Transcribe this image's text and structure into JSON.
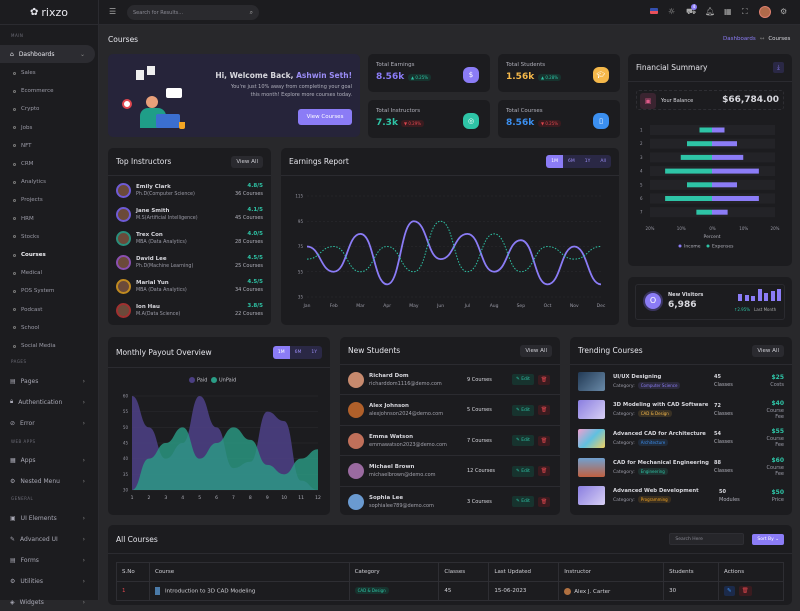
{
  "brand": {
    "name": "rixzo"
  },
  "header": {
    "search_placeholder": "Search for Results...",
    "cart_count": "4",
    "icons": [
      "us-flag-icon",
      "sun-icon",
      "cart-icon",
      "bell-icon",
      "apps-grid-icon",
      "fullscreen-icon",
      "avatar",
      "gear-icon"
    ]
  },
  "sidebar": {
    "main_label": "MAIN",
    "dashboards": "Dashboards",
    "subs": [
      "Sales",
      "Ecommerce",
      "Crypto",
      "Jobs",
      "NFT",
      "CRM",
      "Analytics",
      "Projects",
      "HRM",
      "Stocks",
      "Courses",
      "Medical",
      "POS System",
      "Podcast",
      "School",
      "Social Media"
    ],
    "active_sub": "Courses",
    "pages_label": "PAGES",
    "pages": [
      "Pages",
      "Authentication",
      "Error"
    ],
    "webapps_label": "WEB APPS",
    "webapps": [
      "Apps",
      "Nested Menu"
    ],
    "general_label": "GENERAL",
    "general": [
      "UI Elements",
      "Advanced UI",
      "Forms",
      "Utilities",
      "Widgets"
    ]
  },
  "page": {
    "title": "Courses",
    "breadcrumb": [
      "Dashboards",
      "Courses"
    ]
  },
  "welcome": {
    "greeting": "Hi, Welcome Back, ",
    "name": "Ashwin Seth!",
    "text1": "You're just 10% away from completing your goal",
    "text2": "this month! Explore more courses today.",
    "button": "View Courses"
  },
  "stats": [
    {
      "label": "Total Earnings",
      "value": "8.56k",
      "change": "0.25%",
      "trend": "up",
      "color": "#8b7cf6",
      "icon": "dollar-icon"
    },
    {
      "label": "Total Students",
      "value": "1.56k",
      "change": "0.28%",
      "trend": "up",
      "color": "#f5b84a",
      "icon": "graduation-cap-icon"
    },
    {
      "label": "Total Instructors",
      "value": "7.3k",
      "change": "0.29%",
      "trend": "down",
      "color": "#2ec4a6",
      "icon": "instructor-icon"
    },
    {
      "label": "Total Courses",
      "value": "8.56k",
      "change": "0.25%",
      "trend": "down",
      "color": "#3b8ff0",
      "icon": "book-icon"
    }
  ],
  "financial": {
    "title": "Financial Summary",
    "balance_label": "Your Balance",
    "balance": "$66,784.00"
  },
  "visitors": {
    "label": "New Visitors",
    "value": "6,986",
    "change": "2.95%",
    "period": "Last Month",
    "bars": [
      3,
      2.5,
      2,
      5,
      3.5,
      4,
      5
    ]
  },
  "instructors": {
    "title": "Top Instructors",
    "view_all": "View All",
    "items": [
      {
        "name": "Emily Clark",
        "degree": "Ph.D(Computer Science)",
        "rating": "4.8/5",
        "courses": "36 Courses",
        "ring": "#6f5bd6"
      },
      {
        "name": "Jane Smith",
        "degree": "M.S(Artificial Intelligence)",
        "rating": "4.1/5",
        "courses": "45 Courses",
        "ring": "#6f5bd6"
      },
      {
        "name": "Trex Con",
        "degree": "MBA (Data Analytics)",
        "rating": "4.0/5",
        "courses": "28 Courses",
        "ring": "#2a8f7c"
      },
      {
        "name": "David Lee",
        "degree": "Ph.D(Machine Learning)",
        "rating": "4.5/5",
        "courses": "25 Courses",
        "ring": "#8a4fb0"
      },
      {
        "name": "Marial Yun",
        "degree": "MBA (Data Analytics)",
        "rating": "4.5/5",
        "courses": "34 Courses",
        "ring": "#c08a20"
      },
      {
        "name": "Ion Hau",
        "degree": "M.A(Data Science)",
        "rating": "3.8/5",
        "courses": "22 Courses",
        "ring": "#a03030"
      }
    ]
  },
  "earnings": {
    "title": "Earnings Report",
    "ranges": [
      "1M",
      "6M",
      "1Y",
      "All"
    ],
    "active": "1M"
  },
  "payout": {
    "title": "Monthly Payout Overview",
    "ranges": [
      "1M",
      "6M",
      "1Y"
    ],
    "active": "1M"
  },
  "students": {
    "title": "New Students",
    "view_all": "View All",
    "edit": "Edit",
    "items": [
      {
        "name": "Richard Dom",
        "email": "richarddom1116@demo.com",
        "courses": "9 Courses"
      },
      {
        "name": "Alex Johnson",
        "email": "alexjohnson2024@demo.com",
        "courses": "5 Courses"
      },
      {
        "name": "Emma Watson",
        "email": "emmawatson2023@demo.com",
        "courses": "7 Courses"
      },
      {
        "name": "Michael Brown",
        "email": "michaelbrown@demo.com",
        "courses": "12 Courses"
      },
      {
        "name": "Sophia Lee",
        "email": "sophialee789@demo.com",
        "courses": "3 Courses"
      }
    ]
  },
  "trending": {
    "title": "Trending Courses",
    "view_all": "View All",
    "category_label": "Category:",
    "items": [
      {
        "name": "UI/UX Designing",
        "category": "Computer Science",
        "cat_color": "#8b7cf6",
        "count": "45",
        "unit": "Classes",
        "price": "$25",
        "price_label": "Costs"
      },
      {
        "name": "3D Modeling with CAD Software",
        "category": "CAD & Design",
        "cat_color": "#f5b84a",
        "count": "72",
        "unit": "Classes",
        "price": "$40",
        "price_label": "Course Fee"
      },
      {
        "name": "Advanced CAD for Architecture",
        "category": "Architecture",
        "cat_color": "#3b8ff0",
        "count": "54",
        "unit": "Classes",
        "price": "$55",
        "price_label": "Course Fee"
      },
      {
        "name": "CAD for Mechanical Engineering",
        "category": "Engineering",
        "cat_color": "#2ec4a6",
        "count": "88",
        "unit": "Classes",
        "price": "$60",
        "price_label": "Course Fee"
      },
      {
        "name": "Advanced Web Development",
        "category": "Programming",
        "cat_color": "#f5a623",
        "count": "50",
        "unit": "Modules",
        "price": "$50",
        "price_label": "Price"
      }
    ]
  },
  "all_courses": {
    "title": "All Courses",
    "search_placeholder": "Search Here",
    "sort": "Sort By",
    "columns": [
      "S.No",
      "Course",
      "Category",
      "Classes",
      "Last Updated",
      "Instructor",
      "Students",
      "Actions"
    ],
    "rows": [
      {
        "sno": "1",
        "course": "Introduction to 3D CAD Modeling",
        "category": "CAD & Design",
        "classes": "45",
        "updated": "15-06-2023",
        "instructor": "Alex J. Carter",
        "students": "30"
      }
    ]
  },
  "chart_data": [
    {
      "type": "line",
      "title": "Earnings Report",
      "x": [
        "Jan",
        "Feb",
        "Mar",
        "Apr",
        "May",
        "Jun",
        "Jul",
        "Aug",
        "Sep",
        "Oct",
        "Nov",
        "Dec"
      ],
      "ylim": [
        35,
        115
      ],
      "yticks": [
        115,
        95,
        75,
        55,
        35
      ],
      "grid": true,
      "series": [
        {
          "values": [
            75,
            55,
            85,
            45,
            95,
            65,
            85,
            55,
            80,
            45,
            75,
            45
          ],
          "color": "#8b7cf6",
          "style": "solid"
        },
        {
          "values": [
            65,
            75,
            55,
            75,
            55,
            95,
            55,
            85,
            55,
            75,
            65,
            75
          ],
          "color": "#2ec4a6",
          "style": "dashed"
        }
      ]
    },
    {
      "type": "area",
      "title": "Monthly Payout Overview",
      "x": [
        "1",
        "2",
        "3",
        "4",
        "5",
        "6",
        "7",
        "8",
        "9",
        "10",
        "11",
        "12"
      ],
      "ylim": [
        30,
        60
      ],
      "yticks": [
        60,
        55,
        50,
        45,
        40,
        35,
        30
      ],
      "legend": "top",
      "series": [
        {
          "name": "Paid",
          "values": [
            60,
            50,
            40,
            45,
            60,
            50,
            37,
            39,
            55,
            52,
            33,
            30
          ],
          "color": "#4b3f82"
        },
        {
          "name": "UnPaid",
          "values": [
            30,
            40,
            45,
            50,
            40,
            45,
            50,
            46,
            38,
            35,
            40,
            43
          ],
          "color": "#2a9d86"
        }
      ]
    },
    {
      "type": "bar",
      "orientation": "horizontal",
      "stacked": "diverging",
      "categories": [
        "1",
        "2",
        "3",
        "4",
        "5",
        "6",
        "7"
      ],
      "xlabel": "Percent",
      "xticks": [
        "20%",
        "10%",
        "0%",
        "10%",
        "20%"
      ],
      "xlim": [
        -20,
        20
      ],
      "legend": "bottom",
      "series": [
        {
          "name": "Income",
          "values": [
            4,
            8,
            10,
            15,
            8,
            15,
            5
          ],
          "color": "#8b7cf6"
        },
        {
          "name": "Expenses",
          "values": [
            -4,
            -8,
            -10,
            -15,
            -8,
            -15,
            -5
          ],
          "color": "#2ec4a6"
        }
      ]
    }
  ]
}
